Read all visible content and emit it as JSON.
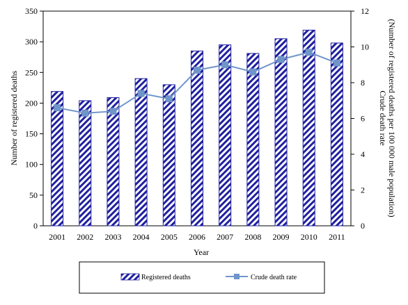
{
  "chart_data": {
    "type": "bar",
    "categories": [
      "2001",
      "2002",
      "2003",
      "2004",
      "2005",
      "2006",
      "2007",
      "2008",
      "2009",
      "2010",
      "2011"
    ],
    "xlabel": "Year",
    "ylabel": "Number of registered deaths",
    "y2label_line1": "Crude death rate",
    "y2label_line2": "(Number of registered deaths per 100 000 male population)",
    "ylim": [
      0,
      350
    ],
    "y_ticks": [
      0,
      50,
      100,
      150,
      200,
      250,
      300,
      350
    ],
    "y2lim": [
      0,
      12
    ],
    "y2_ticks": [
      0,
      2,
      4,
      6,
      8,
      10,
      12
    ],
    "grid": false,
    "legend_position": "bottom",
    "series": [
      {
        "name": "Registered deaths",
        "kind": "bar",
        "axis": "left",
        "color": "#1f1fa0",
        "values": [
          219,
          204,
          209,
          240,
          230,
          285,
          295,
          281,
          305,
          319,
          298
        ]
      },
      {
        "name": "Crude death rate",
        "kind": "line",
        "axis": "right",
        "color": "#6f95c9",
        "values": [
          6.6,
          6.3,
          6.4,
          7.4,
          7.1,
          8.7,
          9.0,
          8.6,
          9.3,
          9.7,
          9.1
        ]
      }
    ]
  }
}
